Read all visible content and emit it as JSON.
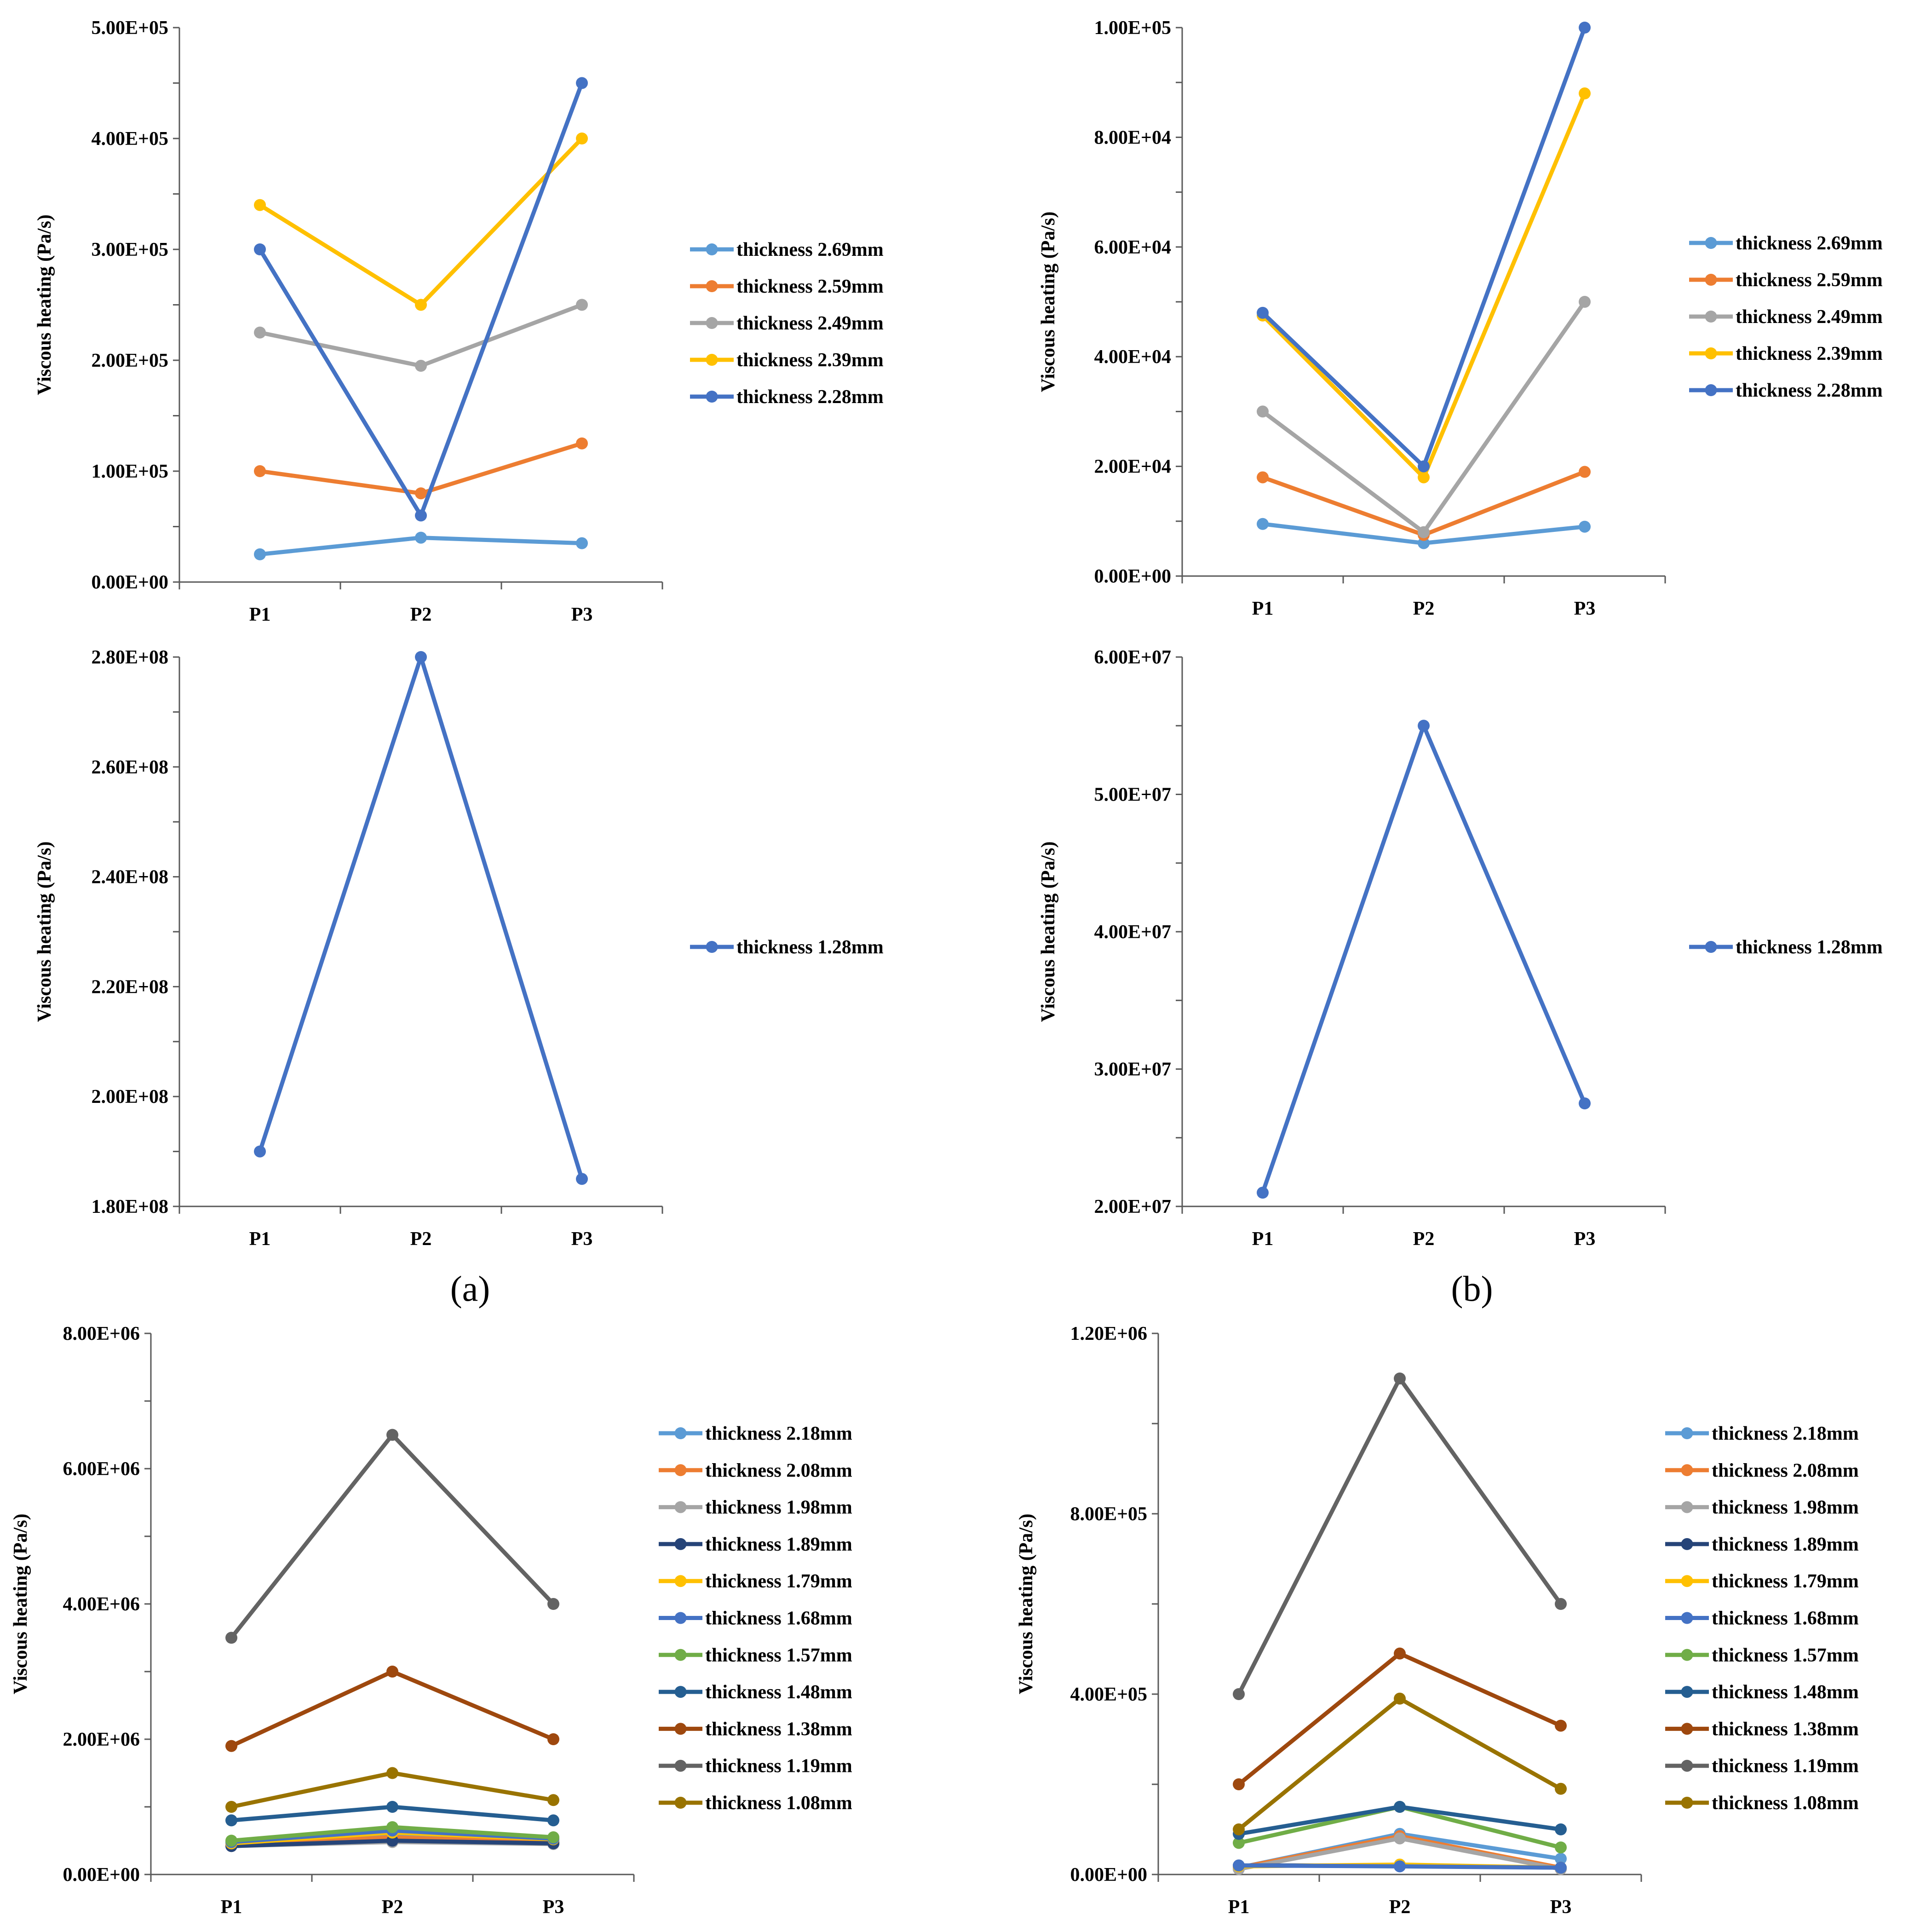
{
  "colors": {
    "c2_69": "#5B9BD5",
    "c2_59": "#ED7D31",
    "c2_49": "#A5A5A5",
    "c2_39": "#FFC000",
    "c2_28": "#4472C4",
    "c1_89": "#264478",
    "c1_57": "#70AD47",
    "c1_48": "#255E91",
    "c1_38": "#9E480E",
    "c1_19": "#636363",
    "c1_08": "#997300"
  },
  "panel_labels": {
    "a": "(a)",
    "b": "(b)"
  },
  "chart_data": [
    {
      "id": "a-top",
      "type": "line",
      "ylabel": "Viscous heating (Pa/s)",
      "categories": [
        "P1",
        "P2",
        "P3"
      ],
      "ylim": [
        0,
        500000
      ],
      "major": 100000,
      "minor": 50000,
      "ytick_labels": [
        "0.00E+00",
        "1.00E+05",
        "2.00E+05",
        "3.00E+05",
        "4.00E+05",
        "5.00E+05"
      ],
      "series": [
        {
          "name": "thickness 2.69mm",
          "color": "#5B9BD5",
          "values": [
            25000,
            40000,
            35000
          ]
        },
        {
          "name": "thickness 2.59mm",
          "color": "#ED7D31",
          "values": [
            100000,
            80000,
            125000
          ]
        },
        {
          "name": "thickness 2.49mm",
          "color": "#A5A5A5",
          "values": [
            225000,
            195000,
            250000
          ]
        },
        {
          "name": "thickness 2.39mm",
          "color": "#FFC000",
          "values": [
            340000,
            250000,
            400000
          ]
        },
        {
          "name": "thickness 2.28mm",
          "color": "#4472C4",
          "values": [
            300000,
            60000,
            450000
          ]
        }
      ]
    },
    {
      "id": "b-top",
      "type": "line",
      "ylabel": "Viscous heating (Pa/s)",
      "categories": [
        "P1",
        "P2",
        "P3"
      ],
      "ylim": [
        0,
        100000
      ],
      "major": 20000,
      "minor": 10000,
      "ytick_labels": [
        "0.00E+00",
        "2.00E+04",
        "4.00E+04",
        "6.00E+04",
        "8.00E+04",
        "1.00E+05"
      ],
      "series": [
        {
          "name": "thickness 2.69mm",
          "color": "#5B9BD5",
          "values": [
            9500,
            6000,
            9000
          ]
        },
        {
          "name": "thickness 2.59mm",
          "color": "#ED7D31",
          "values": [
            18000,
            7500,
            19000
          ]
        },
        {
          "name": "thickness 2.49mm",
          "color": "#A5A5A5",
          "values": [
            30000,
            8000,
            50000
          ]
        },
        {
          "name": "thickness 2.39mm",
          "color": "#FFC000",
          "values": [
            47500,
            18000,
            88000
          ]
        },
        {
          "name": "thickness 2.28mm",
          "color": "#4472C4",
          "values": [
            48000,
            20000,
            100000
          ]
        }
      ]
    },
    {
      "id": "a-mid",
      "type": "line",
      "ylabel": "Viscous heating (Pa/s)",
      "categories": [
        "P1",
        "P2",
        "P3"
      ],
      "ylim": [
        180000000,
        280000000
      ],
      "major": 20000000,
      "minor": 10000000,
      "ytick_labels": [
        "1.80E+08",
        "2.00E+08",
        "2.20E+08",
        "2.40E+08",
        "2.60E+08",
        "2.80E+08"
      ],
      "series": [
        {
          "name": "thickness 1.28mm",
          "color": "#4472C4",
          "values": [
            190000000,
            280000000,
            185000000
          ]
        }
      ]
    },
    {
      "id": "b-mid",
      "type": "line",
      "ylabel": "Viscous heating (Pa/s)",
      "categories": [
        "P1",
        "P2",
        "P3"
      ],
      "ylim": [
        20000000,
        60000000
      ],
      "major": 10000000,
      "minor": 5000000,
      "ytick_labels": [
        "2.00E+07",
        "3.00E+07",
        "4.00E+07",
        "5.00E+07",
        "6.00E+07"
      ],
      "series": [
        {
          "name": "thickness 1.28mm",
          "color": "#4472C4",
          "values": [
            21000000,
            55000000,
            27500000
          ]
        }
      ]
    },
    {
      "id": "a-bot",
      "type": "line",
      "ylabel": "Viscous heating (Pa/s)",
      "categories": [
        "P1",
        "P2",
        "P3"
      ],
      "ylim": [
        0,
        8000000
      ],
      "major": 2000000,
      "minor": 1000000,
      "ytick_labels": [
        "0.00E+00",
        "2.00E+06",
        "4.00E+06",
        "6.00E+06",
        "8.00E+06"
      ],
      "series": [
        {
          "name": "thickness 2.18mm",
          "color": "#5B9BD5",
          "values": [
            450000,
            600000,
            500000
          ]
        },
        {
          "name": "thickness 2.08mm",
          "color": "#ED7D31",
          "values": [
            430000,
            550000,
            470000
          ]
        },
        {
          "name": "thickness 1.98mm",
          "color": "#A5A5A5",
          "values": [
            420000,
            480000,
            450000
          ]
        },
        {
          "name": "thickness 1.89mm",
          "color": "#264478",
          "values": [
            420000,
            500000,
            460000
          ]
        },
        {
          "name": "thickness 1.79mm",
          "color": "#FFC000",
          "values": [
            460000,
            620000,
            520000
          ]
        },
        {
          "name": "thickness 1.68mm",
          "color": "#4472C4",
          "values": [
            480000,
            650000,
            530000
          ]
        },
        {
          "name": "thickness 1.57mm",
          "color": "#70AD47",
          "values": [
            500000,
            700000,
            550000
          ]
        },
        {
          "name": "thickness 1.48mm",
          "color": "#255E91",
          "values": [
            800000,
            1000000,
            800000
          ]
        },
        {
          "name": "thickness 1.38mm",
          "color": "#9E480E",
          "values": [
            1900000,
            3000000,
            2000000
          ]
        },
        {
          "name": "thickness 1.19mm",
          "color": "#636363",
          "values": [
            3500000,
            6500000,
            4000000
          ]
        },
        {
          "name": "thickness 1.08mm",
          "color": "#997300",
          "values": [
            1000000,
            1500000,
            1100000
          ]
        }
      ]
    },
    {
      "id": "b-bot",
      "type": "line",
      "ylabel": "Viscous heating (Pa/s)",
      "categories": [
        "P1",
        "P2",
        "P3"
      ],
      "ylim": [
        0,
        1200000
      ],
      "major": 400000,
      "minor": 200000,
      "ytick_labels": [
        "0.00E+00",
        "4.00E+05",
        "8.00E+05",
        "1.20E+06"
      ],
      "series": [
        {
          "name": "thickness 2.18mm",
          "color": "#5B9BD5",
          "values": [
            15000,
            90000,
            35000
          ]
        },
        {
          "name": "thickness 2.08mm",
          "color": "#ED7D31",
          "values": [
            15000,
            85000,
            15000
          ]
        },
        {
          "name": "thickness 1.98mm",
          "color": "#A5A5A5",
          "values": [
            12000,
            80000,
            12000
          ]
        },
        {
          "name": "thickness 1.89mm",
          "color": "#264478",
          "values": [
            20000,
            20000,
            15000
          ]
        },
        {
          "name": "thickness 1.79mm",
          "color": "#FFC000",
          "values": [
            18000,
            22000,
            15000
          ]
        },
        {
          "name": "thickness 1.68mm",
          "color": "#4472C4",
          "values": [
            20000,
            18000,
            15000
          ]
        },
        {
          "name": "thickness 1.57mm",
          "color": "#70AD47",
          "values": [
            70000,
            150000,
            60000
          ]
        },
        {
          "name": "thickness 1.48mm",
          "color": "#255E91",
          "values": [
            90000,
            150000,
            100000
          ]
        },
        {
          "name": "thickness 1.38mm",
          "color": "#9E480E",
          "values": [
            200000,
            490000,
            330000
          ]
        },
        {
          "name": "thickness 1.19mm",
          "color": "#636363",
          "values": [
            400000,
            1100000,
            600000
          ]
        },
        {
          "name": "thickness 1.08mm",
          "color": "#997300",
          "values": [
            100000,
            390000,
            190000
          ]
        }
      ]
    }
  ]
}
